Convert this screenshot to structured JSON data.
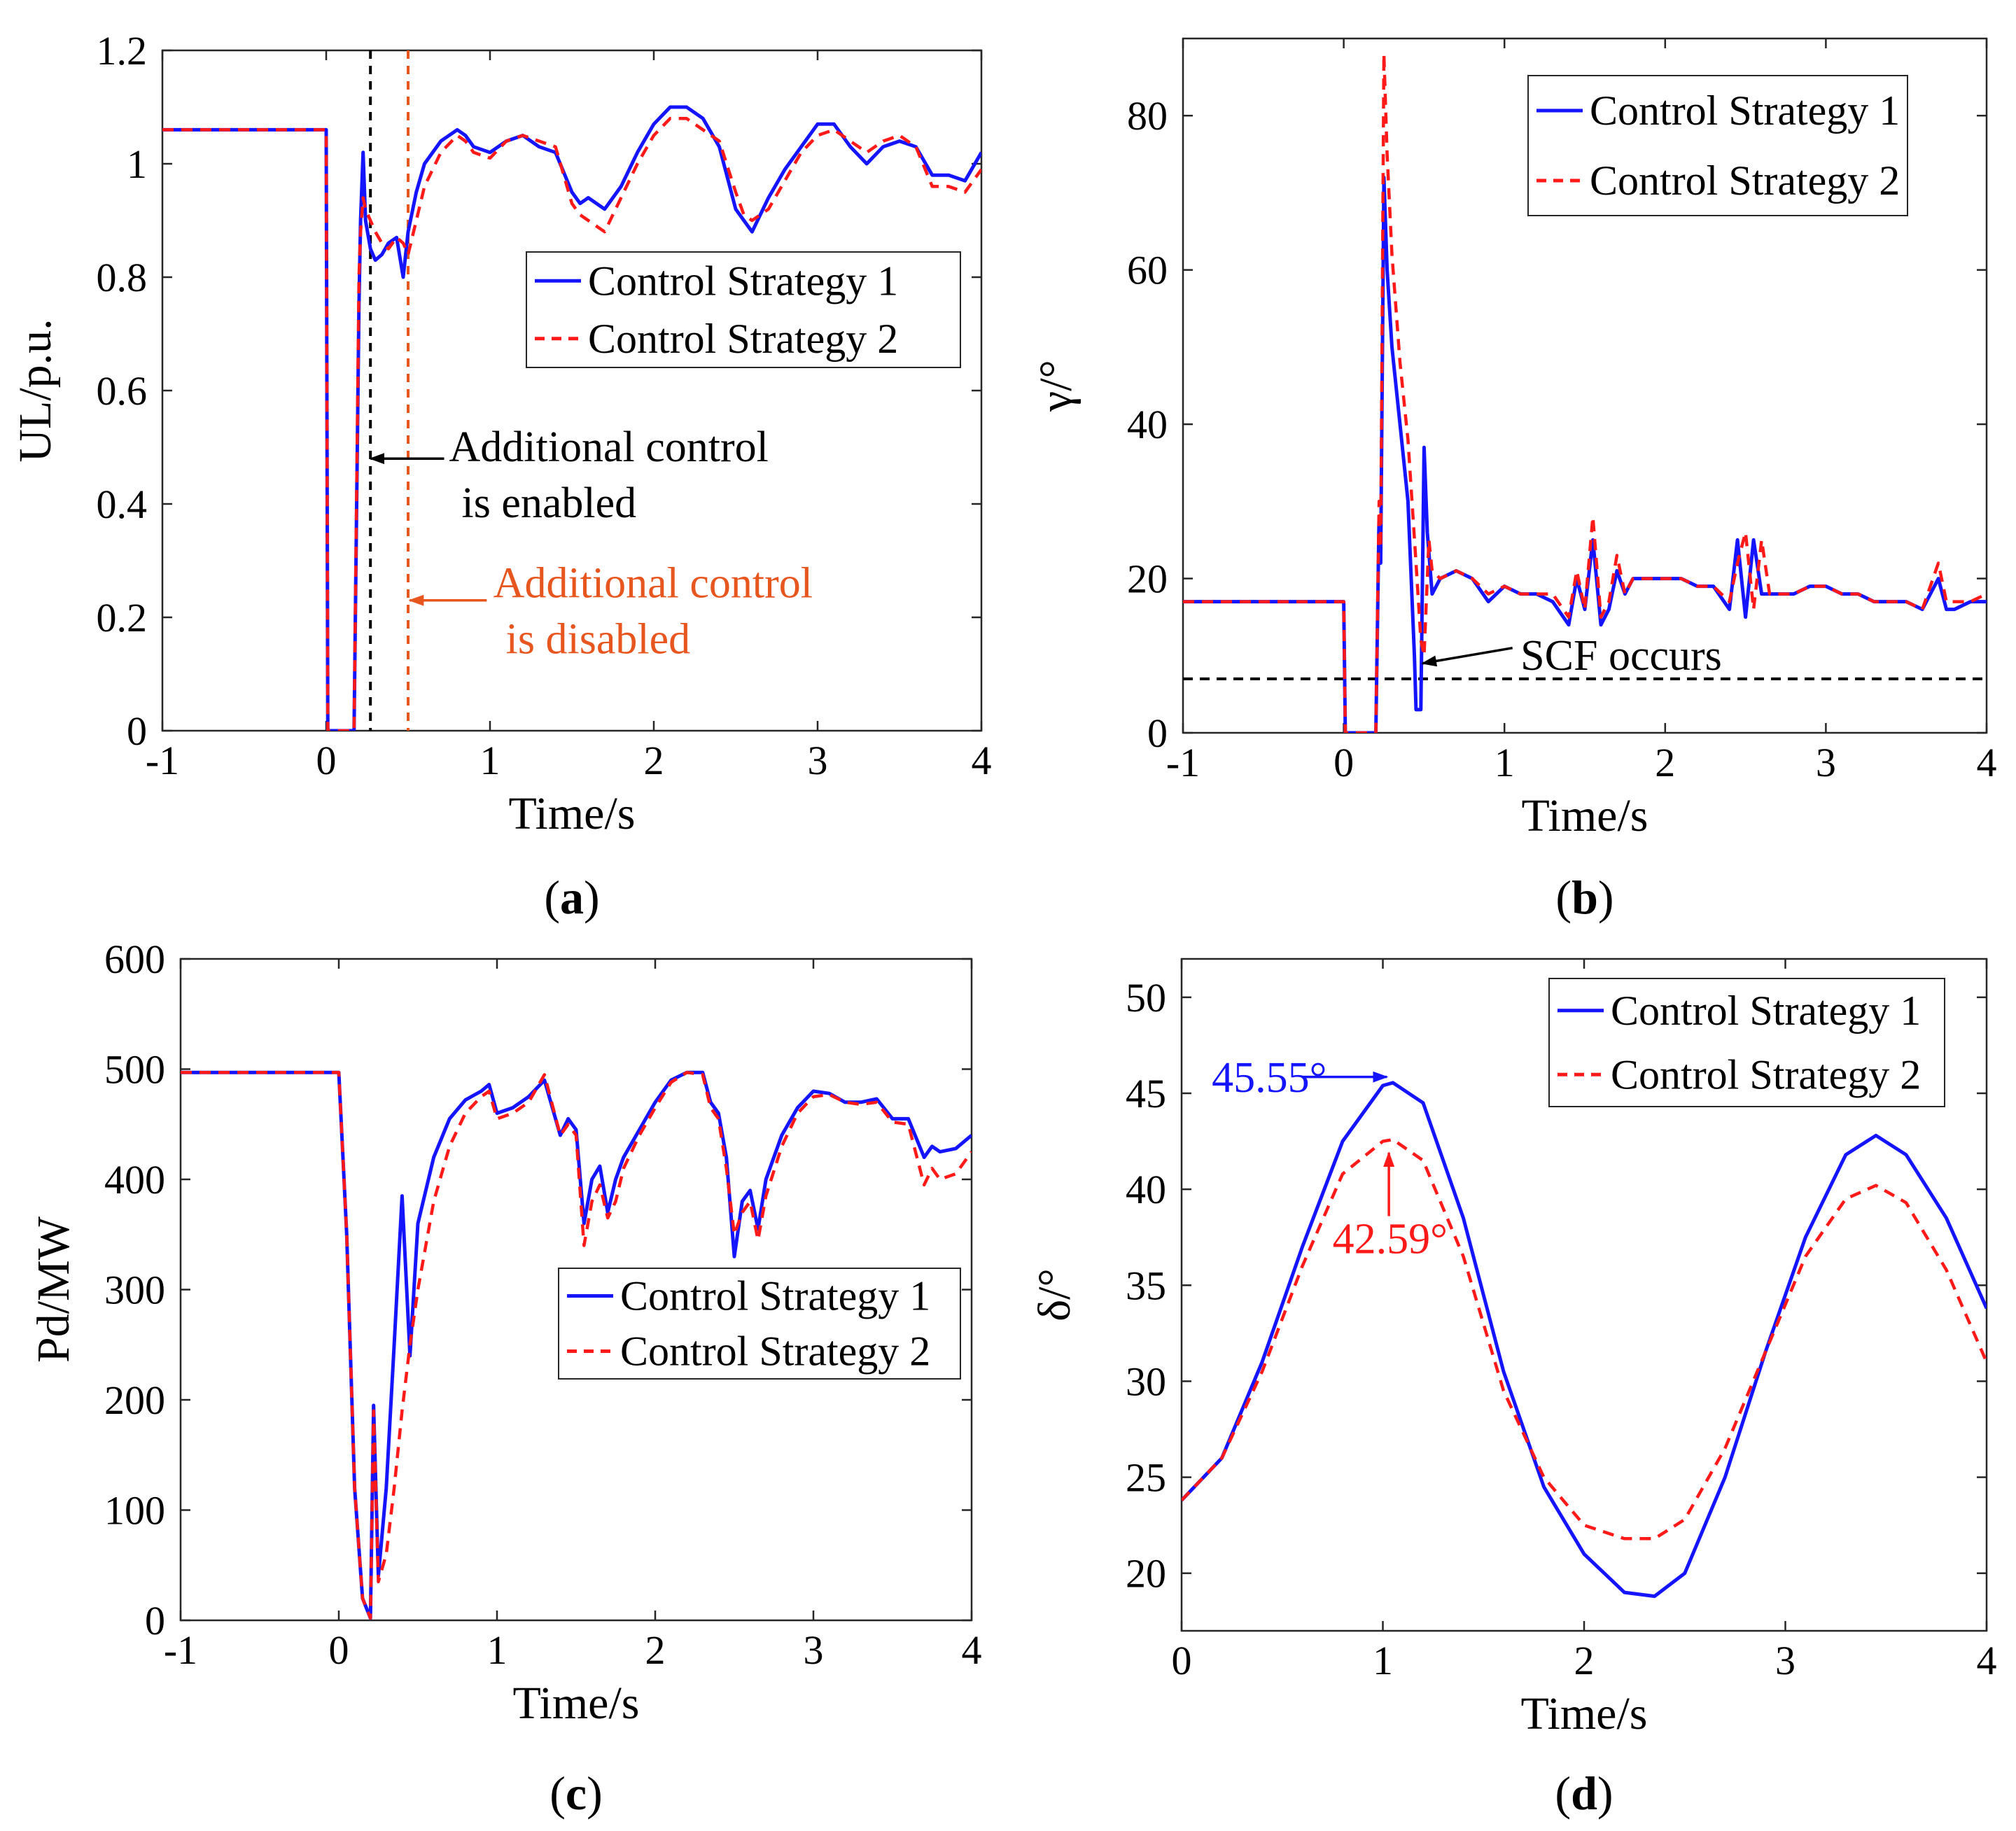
{
  "colors": {
    "strategy1": "#1414ff",
    "strategy2": "#ff1a1a",
    "black": "#000000",
    "orange": "#e8561f"
  },
  "chart_data": [
    {
      "id": "a",
      "type": "line",
      "panel_label": "a",
      "xlabel": "Time/s",
      "ylabel": "UL/p.u.",
      "xlim": [
        -1,
        4
      ],
      "ylim": [
        0,
        1.2
      ],
      "xticks": [
        "-1",
        "0",
        "1",
        "2",
        "3",
        "4"
      ],
      "yticks": [
        "0",
        "0.2",
        "0.4",
        "0.6",
        "0.8",
        "1",
        "1.2"
      ],
      "grid": false,
      "legend_position": "right-middle",
      "series": [
        {
          "name": "Control Strategy 1",
          "color": "#1414ff",
          "style": "solid",
          "x": [
            -1,
            0,
            0.01,
            0.17,
            0.2,
            0.21,
            0.225,
            0.24,
            0.27,
            0.3,
            0.34,
            0.38,
            0.43,
            0.47,
            0.5,
            0.55,
            0.6,
            0.7,
            0.8,
            0.85,
            0.9,
            1.0,
            1.1,
            1.2,
            1.3,
            1.4,
            1.5,
            1.55,
            1.6,
            1.7,
            1.8,
            1.9,
            2.0,
            2.1,
            2.2,
            2.3,
            2.4,
            2.5,
            2.55,
            2.6,
            2.7,
            2.8,
            2.9,
            3.0,
            3.1,
            3.2,
            3.3,
            3.4,
            3.5,
            3.6,
            3.7,
            3.8,
            3.9,
            4.0
          ],
          "y": [
            1.06,
            1.06,
            0,
            0,
            0.75,
            0.9,
            1.02,
            0.9,
            0.85,
            0.83,
            0.84,
            0.86,
            0.87,
            0.8,
            0.88,
            0.95,
            1.0,
            1.04,
            1.06,
            1.05,
            1.03,
            1.02,
            1.04,
            1.05,
            1.03,
            1.02,
            0.95,
            0.93,
            0.94,
            0.92,
            0.96,
            1.02,
            1.07,
            1.1,
            1.1,
            1.08,
            1.03,
            0.92,
            0.9,
            0.88,
            0.94,
            0.99,
            1.03,
            1.07,
            1.07,
            1.03,
            1.0,
            1.03,
            1.04,
            1.03,
            0.98,
            0.98,
            0.97,
            1.02
          ]
        },
        {
          "name": "Control Strategy 2",
          "color": "#ff1a1a",
          "style": "dashed",
          "x": [
            -1,
            0,
            0.01,
            0.17,
            0.2,
            0.21,
            0.225,
            0.24,
            0.27,
            0.3,
            0.34,
            0.38,
            0.43,
            0.47,
            0.5,
            0.55,
            0.6,
            0.7,
            0.8,
            0.85,
            0.9,
            1.0,
            1.1,
            1.2,
            1.3,
            1.4,
            1.5,
            1.55,
            1.6,
            1.7,
            1.8,
            1.9,
            2.0,
            2.1,
            2.2,
            2.3,
            2.4,
            2.5,
            2.55,
            2.6,
            2.7,
            2.8,
            2.9,
            3.0,
            3.1,
            3.2,
            3.3,
            3.4,
            3.5,
            3.6,
            3.7,
            3.8,
            3.9,
            4.0
          ],
          "y": [
            1.06,
            1.06,
            0,
            0,
            0.8,
            0.88,
            0.94,
            0.92,
            0.9,
            0.88,
            0.86,
            0.85,
            0.87,
            0.86,
            0.84,
            0.9,
            0.96,
            1.02,
            1.05,
            1.04,
            1.02,
            1.01,
            1.04,
            1.05,
            1.04,
            1.03,
            0.93,
            0.91,
            0.9,
            0.88,
            0.94,
            1.0,
            1.05,
            1.08,
            1.08,
            1.06,
            1.04,
            0.95,
            0.91,
            0.9,
            0.92,
            0.97,
            1.02,
            1.05,
            1.06,
            1.04,
            1.02,
            1.04,
            1.05,
            1.03,
            0.96,
            0.96,
            0.95,
            0.99
          ]
        }
      ],
      "vlines": [
        {
          "x": 0.27,
          "color": "#000000"
        },
        {
          "x": 0.5,
          "color": "#e8561f"
        }
      ],
      "annotations": [
        {
          "lines": [
            "Additional control",
            "is enabled"
          ],
          "color": "#000000",
          "x": 0.75,
          "y": 0.5,
          "arrow_to": [
            0.27,
            0.48
          ],
          "arrow_from": [
            0.72,
            0.48
          ]
        },
        {
          "lines": [
            "Additional control",
            "is disabled"
          ],
          "color": "#e8561f",
          "x": 1.02,
          "y": 0.26,
          "arrow_to": [
            0.51,
            0.23
          ],
          "arrow_from": [
            0.98,
            0.23
          ]
        }
      ]
    },
    {
      "id": "b",
      "type": "line",
      "panel_label": "b",
      "xlabel": "Time/s",
      "ylabel": "γ/°",
      "xlim": [
        -1,
        4
      ],
      "ylim": [
        0,
        90
      ],
      "xticks": [
        "-1",
        "0",
        "1",
        "2",
        "3",
        "4"
      ],
      "yticks": [
        "0",
        "20",
        "40",
        "60",
        "80"
      ],
      "grid": false,
      "legend_position": "top-right",
      "series": [
        {
          "name": "Control Strategy 1",
          "color": "#1414ff",
          "style": "solid",
          "x": [
            -1,
            0,
            0.01,
            0.2,
            0.22,
            0.23,
            0.25,
            0.27,
            0.3,
            0.35,
            0.4,
            0.44,
            0.45,
            0.48,
            0.5,
            0.52,
            0.55,
            0.6,
            0.7,
            0.8,
            0.9,
            1.0,
            1.1,
            1.2,
            1.3,
            1.4,
            1.45,
            1.5,
            1.55,
            1.6,
            1.65,
            1.7,
            1.75,
            1.8,
            1.9,
            2.0,
            2.1,
            2.2,
            2.3,
            2.4,
            2.45,
            2.5,
            2.55,
            2.6,
            2.65,
            2.7,
            2.8,
            2.9,
            3.0,
            3.1,
            3.2,
            3.3,
            3.4,
            3.5,
            3.6,
            3.7,
            3.75,
            3.8,
            3.9,
            4.0
          ],
          "y": [
            17,
            17,
            0,
            0,
            28,
            22,
            72,
            60,
            50,
            40,
            30,
            10,
            3,
            3,
            37,
            26,
            18,
            20,
            21,
            20,
            17,
            19,
            18,
            18,
            17,
            14,
            20,
            16,
            25,
            14,
            16,
            21,
            18,
            20,
            20,
            20,
            20,
            19,
            19,
            16,
            25,
            15,
            25,
            18,
            18,
            18,
            18,
            19,
            19,
            18,
            18,
            17,
            17,
            17,
            16,
            20,
            16,
            16,
            17,
            17
          ]
        },
        {
          "name": "Control Strategy 2",
          "color": "#ff1a1a",
          "style": "dashed",
          "x": [
            -1,
            0,
            0.01,
            0.2,
            0.22,
            0.23,
            0.25,
            0.27,
            0.3,
            0.35,
            0.4,
            0.45,
            0.48,
            0.5,
            0.53,
            0.55,
            0.6,
            0.7,
            0.8,
            0.9,
            1.0,
            1.1,
            1.2,
            1.3,
            1.4,
            1.45,
            1.5,
            1.55,
            1.6,
            1.65,
            1.7,
            1.75,
            1.8,
            1.9,
            2.0,
            2.1,
            2.2,
            2.3,
            2.4,
            2.45,
            2.5,
            2.55,
            2.6,
            2.65,
            2.7,
            2.8,
            2.9,
            3.0,
            3.1,
            3.2,
            3.3,
            3.4,
            3.5,
            3.6,
            3.7,
            3.75,
            3.8,
            3.9,
            4.0
          ],
          "y": [
            17,
            17,
            0,
            0,
            30,
            24,
            88,
            75,
            62,
            48,
            38,
            22,
            12,
            10,
            25,
            21,
            20,
            21,
            20,
            18,
            19,
            18,
            18,
            18,
            15,
            21,
            16,
            28,
            15,
            17,
            23,
            18,
            20,
            20,
            20,
            20,
            19,
            19,
            17,
            22,
            26,
            16,
            25,
            18,
            18,
            18,
            19,
            19,
            18,
            18,
            17,
            17,
            17,
            16,
            22,
            17,
            17,
            17,
            18
          ]
        }
      ],
      "hlines": [
        {
          "y": 7,
          "color": "#000000"
        }
      ],
      "annotations": [
        {
          "lines": [
            "SCF occurs"
          ],
          "color": "#000000",
          "x": 1.1,
          "y": 10,
          "arrow_to": [
            0.49,
            9
          ],
          "arrow_from": [
            1.05,
            11
          ]
        }
      ]
    },
    {
      "id": "c",
      "type": "line",
      "panel_label": "c",
      "xlabel": "Time/s",
      "ylabel": "Pd/MW",
      "xlim": [
        -1,
        4
      ],
      "ylim": [
        0,
        600
      ],
      "xticks": [
        "-1",
        "0",
        "1",
        "2",
        "3",
        "4"
      ],
      "yticks": [
        "0",
        "100",
        "200",
        "300",
        "400",
        "500",
        "600"
      ],
      "grid": false,
      "legend_position": "right-middle",
      "series": [
        {
          "name": "Control Strategy 1",
          "color": "#1414ff",
          "style": "solid",
          "x": [
            -1,
            0,
            0.05,
            0.1,
            0.15,
            0.2,
            0.22,
            0.25,
            0.3,
            0.35,
            0.4,
            0.45,
            0.5,
            0.6,
            0.7,
            0.8,
            0.9,
            0.95,
            1.0,
            1.1,
            1.2,
            1.3,
            1.4,
            1.45,
            1.5,
            1.55,
            1.6,
            1.65,
            1.7,
            1.75,
            1.8,
            1.9,
            2.0,
            2.1,
            2.2,
            2.3,
            2.35,
            2.4,
            2.45,
            2.5,
            2.55,
            2.6,
            2.65,
            2.7,
            2.8,
            2.9,
            3.0,
            3.1,
            3.2,
            3.3,
            3.4,
            3.5,
            3.6,
            3.7,
            3.75,
            3.8,
            3.9,
            4.0
          ],
          "y": [
            497,
            497,
            350,
            120,
            20,
            2,
            195,
            40,
            120,
            250,
            385,
            240,
            360,
            420,
            455,
            472,
            480,
            486,
            460,
            465,
            475,
            490,
            440,
            455,
            445,
            360,
            400,
            412,
            370,
            400,
            420,
            445,
            470,
            490,
            497,
            497,
            470,
            460,
            420,
            330,
            380,
            390,
            355,
            400,
            440,
            465,
            480,
            478,
            470,
            470,
            473,
            455,
            455,
            420,
            430,
            425,
            428,
            440
          ]
        },
        {
          "name": "Control Strategy 2",
          "color": "#ff1a1a",
          "style": "dashed",
          "x": [
            -1,
            0,
            0.05,
            0.1,
            0.15,
            0.2,
            0.22,
            0.25,
            0.3,
            0.35,
            0.4,
            0.45,
            0.5,
            0.6,
            0.7,
            0.8,
            0.9,
            0.95,
            1.0,
            1.1,
            1.2,
            1.3,
            1.4,
            1.45,
            1.5,
            1.55,
            1.6,
            1.65,
            1.7,
            1.75,
            1.8,
            1.9,
            2.0,
            2.1,
            2.2,
            2.3,
            2.35,
            2.4,
            2.45,
            2.5,
            2.55,
            2.6,
            2.65,
            2.7,
            2.8,
            2.9,
            3.0,
            3.1,
            3.2,
            3.3,
            3.4,
            3.5,
            3.6,
            3.7,
            3.75,
            3.8,
            3.9,
            4.0
          ],
          "y": [
            497,
            497,
            350,
            120,
            20,
            2,
            190,
            35,
            60,
            120,
            190,
            250,
            300,
            380,
            430,
            460,
            475,
            480,
            455,
            460,
            470,
            495,
            440,
            450,
            440,
            340,
            380,
            395,
            365,
            380,
            410,
            440,
            465,
            488,
            497,
            495,
            465,
            455,
            410,
            350,
            370,
            380,
            345,
            385,
            430,
            460,
            475,
            477,
            470,
            468,
            470,
            452,
            450,
            395,
            410,
            400,
            405,
            425
          ]
        }
      ]
    },
    {
      "id": "d",
      "type": "line",
      "panel_label": "d",
      "xlabel": "Time/s",
      "ylabel": "δ/°",
      "xlim": [
        0,
        4
      ],
      "ylim": [
        17,
        52
      ],
      "xticks": [
        "0",
        "1",
        "2",
        "3",
        "4"
      ],
      "yticks": [
        "20",
        "25",
        "30",
        "35",
        "40",
        "45",
        "50"
      ],
      "grid": false,
      "legend_position": "top-right",
      "series": [
        {
          "name": "Control Strategy 1",
          "color": "#1414ff",
          "style": "solid",
          "x": [
            0,
            0.2,
            0.4,
            0.6,
            0.8,
            1.0,
            1.05,
            1.2,
            1.4,
            1.6,
            1.8,
            2.0,
            2.2,
            2.35,
            2.5,
            2.7,
            2.9,
            3.1,
            3.3,
            3.45,
            3.6,
            3.8,
            4.0
          ],
          "y": [
            23.8,
            26,
            31,
            37,
            42.5,
            45.4,
            45.55,
            44.5,
            38.5,
            30.5,
            24.5,
            21,
            19,
            18.8,
            20,
            25,
            31.5,
            37.5,
            41.8,
            42.8,
            41.8,
            38.5,
            33.8
          ]
        },
        {
          "name": "Control Strategy 2",
          "color": "#ff1a1a",
          "style": "dashed",
          "x": [
            0,
            0.2,
            0.4,
            0.6,
            0.8,
            1.0,
            1.05,
            1.2,
            1.4,
            1.6,
            1.8,
            2.0,
            2.2,
            2.35,
            2.5,
            2.7,
            2.9,
            3.1,
            3.3,
            3.45,
            3.6,
            3.8,
            4.0
          ],
          "y": [
            23.8,
            26,
            30.5,
            36,
            40.8,
            42.5,
            42.59,
            41.5,
            36.5,
            29.5,
            25,
            22.5,
            21.8,
            21.8,
            22.8,
            26.5,
            31.5,
            36.5,
            39.5,
            40.2,
            39.3,
            35.8,
            31
          ]
        }
      ],
      "annotations": [
        {
          "lines": [
            "45.55°"
          ],
          "color": "#1414ff",
          "x": 0.15,
          "y": 45.8,
          "arrow_to": [
            1.02,
            45.85
          ],
          "arrow_from": [
            0.6,
            45.85
          ]
        },
        {
          "lines": [
            "42.59°"
          ],
          "color": "#ff1a1a",
          "x": 0.75,
          "y": 37.4,
          "arrow_to": [
            1.03,
            41.9
          ],
          "arrow_from": [
            1.03,
            38.6
          ]
        }
      ]
    }
  ]
}
